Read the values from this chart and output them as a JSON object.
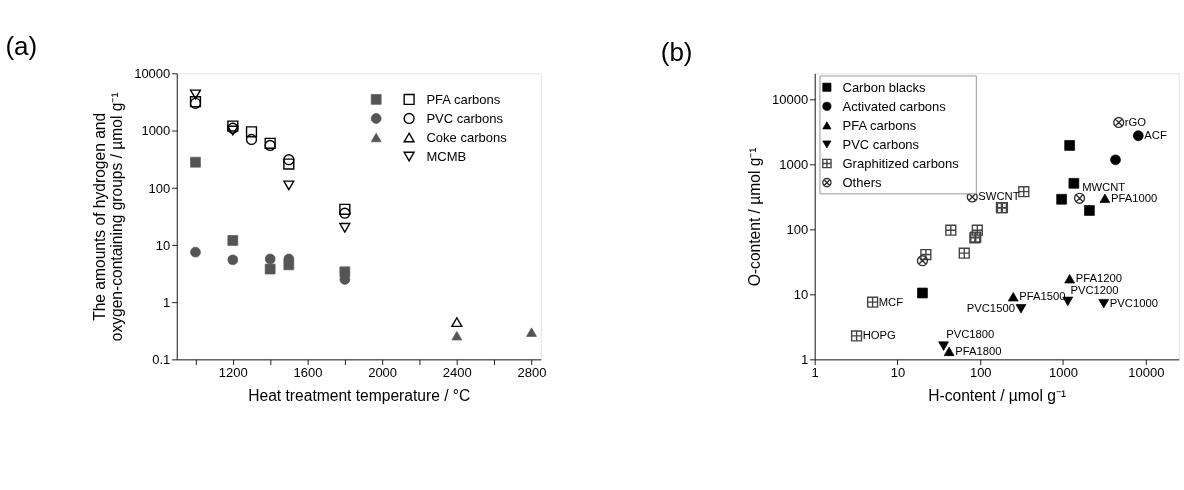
{
  "chart_data": [
    {
      "type": "scatter",
      "title": "(a)",
      "xlabel": "Heat treatment temperature / °C",
      "ylabel": "The amounts of hydrogen and\noxygen-containing groups / µmol g⁻¹",
      "xlim": [
        900,
        2850
      ],
      "ylim": [
        0.1,
        10000
      ],
      "log": "y",
      "grid": false,
      "legend": "top right",
      "xticks": [
        {
          "value": 1000,
          "label": null
        },
        1200,
        {
          "value": 1400,
          "label": null
        },
        1600,
        {
          "value": 1800,
          "label": null
        },
        2000,
        {
          "value": 2200,
          "label": null
        },
        2400,
        {
          "value": 2600,
          "label": null
        },
        2800
      ],
      "yticks": [
        0.1,
        1,
        10,
        100,
        1000,
        10000
      ],
      "series": [
        {
          "name": "PFA carbons",
          "marker": "square-open",
          "color": "#000000",
          "x": [
            1000,
            1200,
            1300,
            1400,
            1500,
            1800
          ],
          "values": [
            3200,
            1200,
            950,
            600,
            260,
            42
          ]
        },
        {
          "name": "PVC carbons",
          "marker": "circle-open",
          "color": "#000000",
          "x": [
            1000,
            1200,
            1300,
            1400,
            1500,
            1800
          ],
          "values": [
            3000,
            1100,
            700,
            550,
            310,
            36
          ]
        },
        {
          "name": "Coke carbons",
          "marker": "triangle-open",
          "color": "#000000",
          "x": [
            2400
          ],
          "values": [
            0.45
          ]
        },
        {
          "name": "MCMB",
          "marker": "triangle-down-open",
          "color": "#000000",
          "x": [
            1000,
            1200,
            1500,
            1800
          ],
          "values": [
            4300,
            1000,
            110,
            20
          ]
        },
        {
          "marker": "square",
          "color": "#555555",
          "x": [
            1000,
            1200,
            1400,
            1500,
            1800
          ],
          "values": [
            280,
            12,
            3.8,
            4.5,
            3.4
          ]
        },
        {
          "marker": "circle",
          "color": "#555555",
          "x": [
            1000,
            1200,
            1400,
            1500,
            1800
          ],
          "values": [
            7.5,
            5.5,
            5.7,
            5.7,
            2.5
          ]
        },
        {
          "marker": "triangle",
          "color": "#555555",
          "x": [
            2400,
            2800
          ],
          "values": [
            0.26,
            0.3
          ]
        }
      ]
    },
    {
      "type": "scatter",
      "title": "(b)",
      "xlabel": "H-content / µmol g⁻¹",
      "ylabel": "O-content / µmol g⁻¹",
      "xlim": [
        1,
        25000
      ],
      "ylim": [
        1,
        25000
      ],
      "log": "xy",
      "grid": false,
      "legend": "top left",
      "xticks": [
        1,
        10,
        100,
        1000,
        10000
      ],
      "yticks": [
        1,
        10,
        100,
        1000,
        10000
      ],
      "series": [
        {
          "name": "Carbon blacks",
          "marker": "square",
          "color": "#000000",
          "x": [
            1200,
            1350,
            960,
            2080,
            20
          ],
          "values": [
            1950,
            510,
            290,
            195,
            10.5
          ]
        },
        {
          "name": "Activated carbons",
          "marker": "circle",
          "color": "#000000",
          "x": [
            8100,
            4300
          ],
          "values": [
            2750,
            1170
          ]
        },
        {
          "name": "PFA carbons",
          "marker": "triangle",
          "color": "#000000",
          "x": [
            3200,
            1200,
            250,
            42
          ],
          "values": [
            300,
            17.4,
            9.2,
            1.33
          ]
        },
        {
          "name": "PVC carbons",
          "marker": "triangle-down",
          "color": "#000000",
          "x": [
            3100,
            1140,
            310,
            36
          ],
          "values": [
            7.2,
            7.8,
            6.0,
            1.6
          ]
        },
        {
          "name": "Graphitized carbons",
          "marker": "cross",
          "color": "#444444",
          "x": [
            180,
            185,
            335,
            92,
            88,
            86,
            44,
            22,
            64,
            5,
            3.2
          ],
          "values": [
            215,
            215,
            380,
            97,
            76,
            74,
            97,
            41,
            43,
            7.6,
            2.3
          ]
        },
        {
          "name": "Others",
          "color": "#333333",
          "x": [
            4700,
            1580,
            80,
            20
          ],
          "values": [
            4400,
            300,
            315,
            33
          ]
        }
      ],
      "annotations": [
        {
          "text": "rGO",
          "x": 4700,
          "y": 4400
        },
        {
          "text": "ACF",
          "x": 8100,
          "y": 2750
        },
        {
          "text": "MWCNT",
          "x": 1580,
          "y": 300
        },
        {
          "text": "PFA1000",
          "x": 3200,
          "y": 300
        },
        {
          "text": "SWCNT",
          "x": 80,
          "y": 315
        },
        {
          "text": "PFA1200",
          "x": 1200,
          "y": 17.4
        },
        {
          "text": "PVC1200",
          "x": 1140,
          "y": 7.8
        },
        {
          "text": "PFA1500",
          "x": 250,
          "y": 9.2
        },
        {
          "text": "PVC1500",
          "x": 310,
          "y": 6.0
        },
        {
          "text": "PVC1000",
          "x": 3100,
          "y": 7.2
        },
        {
          "text": "PFA1800",
          "x": 42,
          "y": 1.33
        },
        {
          "text": "PVC1800",
          "x": 36,
          "y": 1.6
        },
        {
          "text": "MCF",
          "x": 5,
          "y": 7.6
        },
        {
          "text": "HOPG",
          "x": 3.2,
          "y": 2.3
        }
      ]
    }
  ]
}
